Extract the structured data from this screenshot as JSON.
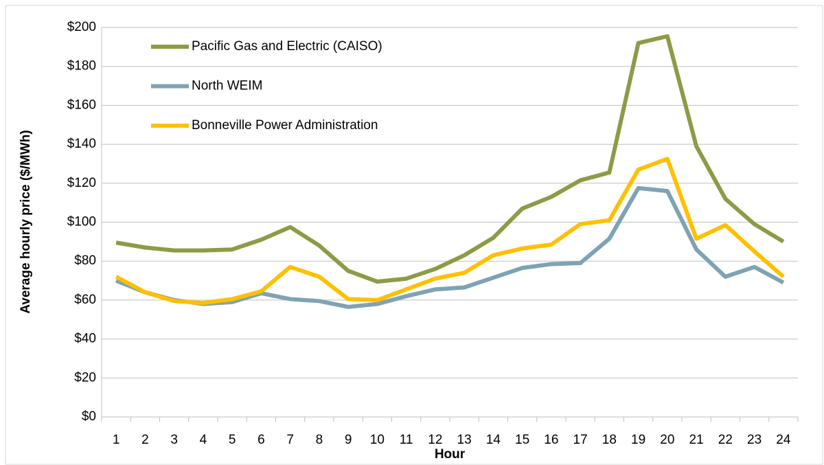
{
  "chart_data": {
    "type": "line",
    "xlabel": "Hour",
    "ylabel": "Average hourly price ($/MWh)",
    "categories": [
      "1",
      "2",
      "3",
      "4",
      "5",
      "6",
      "7",
      "8",
      "9",
      "10",
      "11",
      "12",
      "13",
      "14",
      "15",
      "16",
      "17",
      "18",
      "19",
      "20",
      "21",
      "22",
      "23",
      "24"
    ],
    "series": [
      {
        "name": "Pacific Gas and Electric (CAISO)",
        "color": "#8f9a47",
        "values": [
          89.5,
          87,
          85.5,
          85.5,
          86,
          91,
          97.5,
          88,
          75,
          69.5,
          71,
          76,
          83,
          92,
          107,
          113,
          121.5,
          125.5,
          192,
          195.5,
          139,
          112,
          99,
          90
        ]
      },
      {
        "name": "North WEIM",
        "color": "#7fa2b4",
        "values": [
          70,
          64,
          60,
          58,
          59,
          63.5,
          60.5,
          59.5,
          56.5,
          58,
          62,
          65.5,
          66.5,
          71.5,
          76.5,
          78.5,
          79,
          91.5,
          117.5,
          116,
          86,
          72,
          77,
          69
        ]
      },
      {
        "name": "Bonneville Power Administration",
        "color": "#ffc000",
        "values": [
          72,
          64,
          59.5,
          58.5,
          60.5,
          64.5,
          77,
          72,
          60.5,
          60,
          65.5,
          71,
          74,
          83,
          86.5,
          88.5,
          99,
          101,
          127,
          132.5,
          91.5,
          98.5,
          85,
          72
        ]
      }
    ],
    "ylim": [
      0,
      200
    ],
    "yticks": [
      {
        "value": 0,
        "label": "$0"
      },
      {
        "value": 20,
        "label": "$20"
      },
      {
        "value": 40,
        "label": "$40"
      },
      {
        "value": 60,
        "label": "$60"
      },
      {
        "value": 80,
        "label": "$80"
      },
      {
        "value": 100,
        "label": "$100"
      },
      {
        "value": 120,
        "label": "$120"
      },
      {
        "value": 140,
        "label": "$140"
      },
      {
        "value": 160,
        "label": "$160"
      },
      {
        "value": 180,
        "label": "$180"
      },
      {
        "value": 200,
        "label": "$200"
      }
    ],
    "grid": true,
    "legend": "upper-left"
  }
}
